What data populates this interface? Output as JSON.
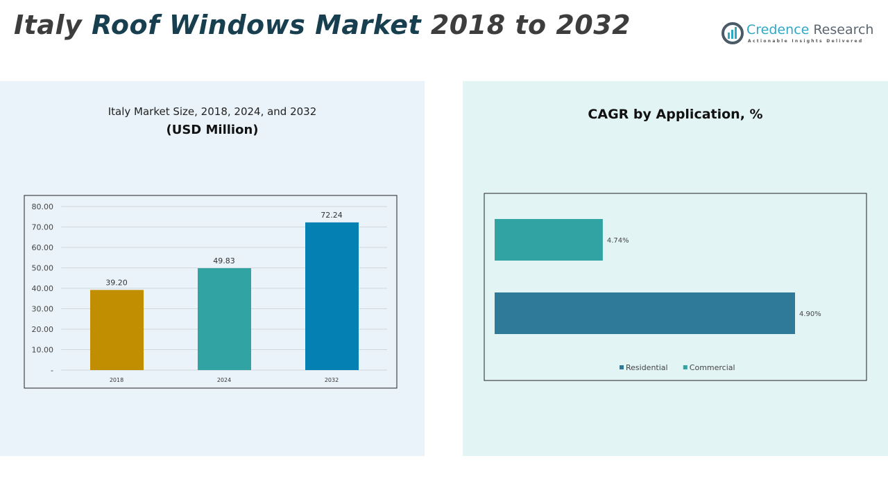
{
  "header": {
    "title_a": "Italy ",
    "title_b": "Roof Windows Market",
    "title_c": " 2018 to 2032"
  },
  "logo": {
    "name_a": "Credence",
    "name_b": " Research",
    "tagline": "Actionable Insights Delivered"
  },
  "chart_data": [
    {
      "type": "bar",
      "title": "Italy Market Size, 2018, 2024, and 2032",
      "subtitle": "(USD Million)",
      "categories": [
        "2018",
        "2024",
        "2032"
      ],
      "values": [
        39.2,
        49.83,
        72.24
      ],
      "labels": [
        "39.20",
        "49.83",
        "72.24"
      ],
      "colors": [
        "#c08e00",
        "#31a3a3",
        "#0580b3"
      ],
      "ylim": [
        0,
        80
      ],
      "yticks": [
        "-",
        "10.00",
        "20.00",
        "30.00",
        "40.00",
        "50.00",
        "60.00",
        "70.00",
        "80.00"
      ],
      "grid": true
    },
    {
      "type": "bar",
      "orientation": "horizontal",
      "title": "CAGR by Application, %",
      "categories": [
        "Commercial",
        "Residential"
      ],
      "values": [
        4.74,
        4.9
      ],
      "labels": [
        "4.74%",
        "4.90%"
      ],
      "colors": [
        "#31a3a3",
        "#2f7a99"
      ],
      "xlim": [
        4.65,
        4.9
      ],
      "legend": [
        {
          "name": "Residential",
          "color": "#2f7a99"
        },
        {
          "name": "Commercial",
          "color": "#31a3a3"
        }
      ],
      "legend_position": "bottom"
    }
  ]
}
